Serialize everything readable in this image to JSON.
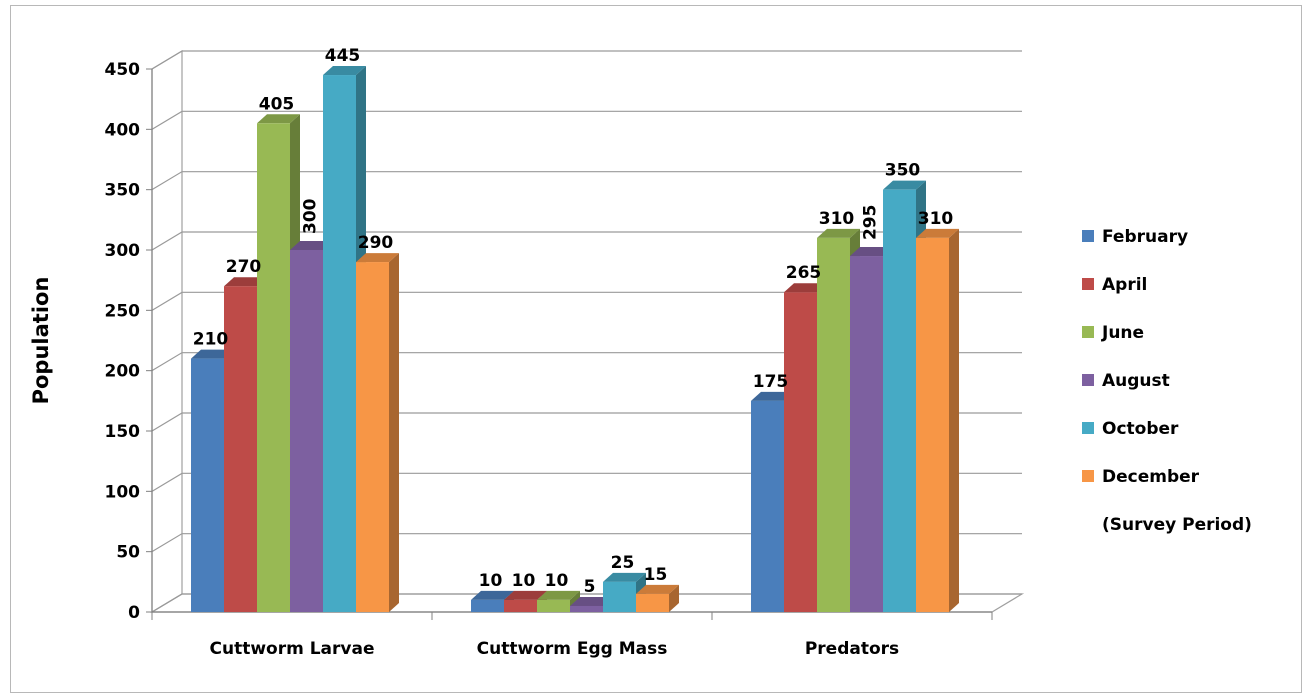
{
  "chart_data": {
    "type": "bar",
    "title": "",
    "xlabel": "",
    "ylabel": "Population",
    "ylim": [
      0,
      450
    ],
    "yticks": [
      0,
      50,
      100,
      150,
      200,
      250,
      300,
      350,
      400,
      450
    ],
    "grid": true,
    "legend_position": "right",
    "legend_note": "(Survey Period)",
    "categories": [
      "Cuttworm Larvae",
      "Cuttworm Egg Mass",
      "Predators"
    ],
    "series": [
      {
        "name": "February",
        "color": "#4A7EBB",
        "values": [
          210,
          10,
          175
        ]
      },
      {
        "name": "April",
        "color": "#BE4B48",
        "values": [
          270,
          10,
          265
        ]
      },
      {
        "name": "June",
        "color": "#98B954",
        "values": [
          405,
          10,
          310
        ]
      },
      {
        "name": "August",
        "color": "#7D60A0",
        "values": [
          300,
          5,
          295
        ]
      },
      {
        "name": "October",
        "color": "#46AAC5",
        "values": [
          445,
          25,
          350
        ]
      },
      {
        "name": "December",
        "color": "#F79646",
        "values": [
          290,
          15,
          310
        ]
      }
    ]
  }
}
